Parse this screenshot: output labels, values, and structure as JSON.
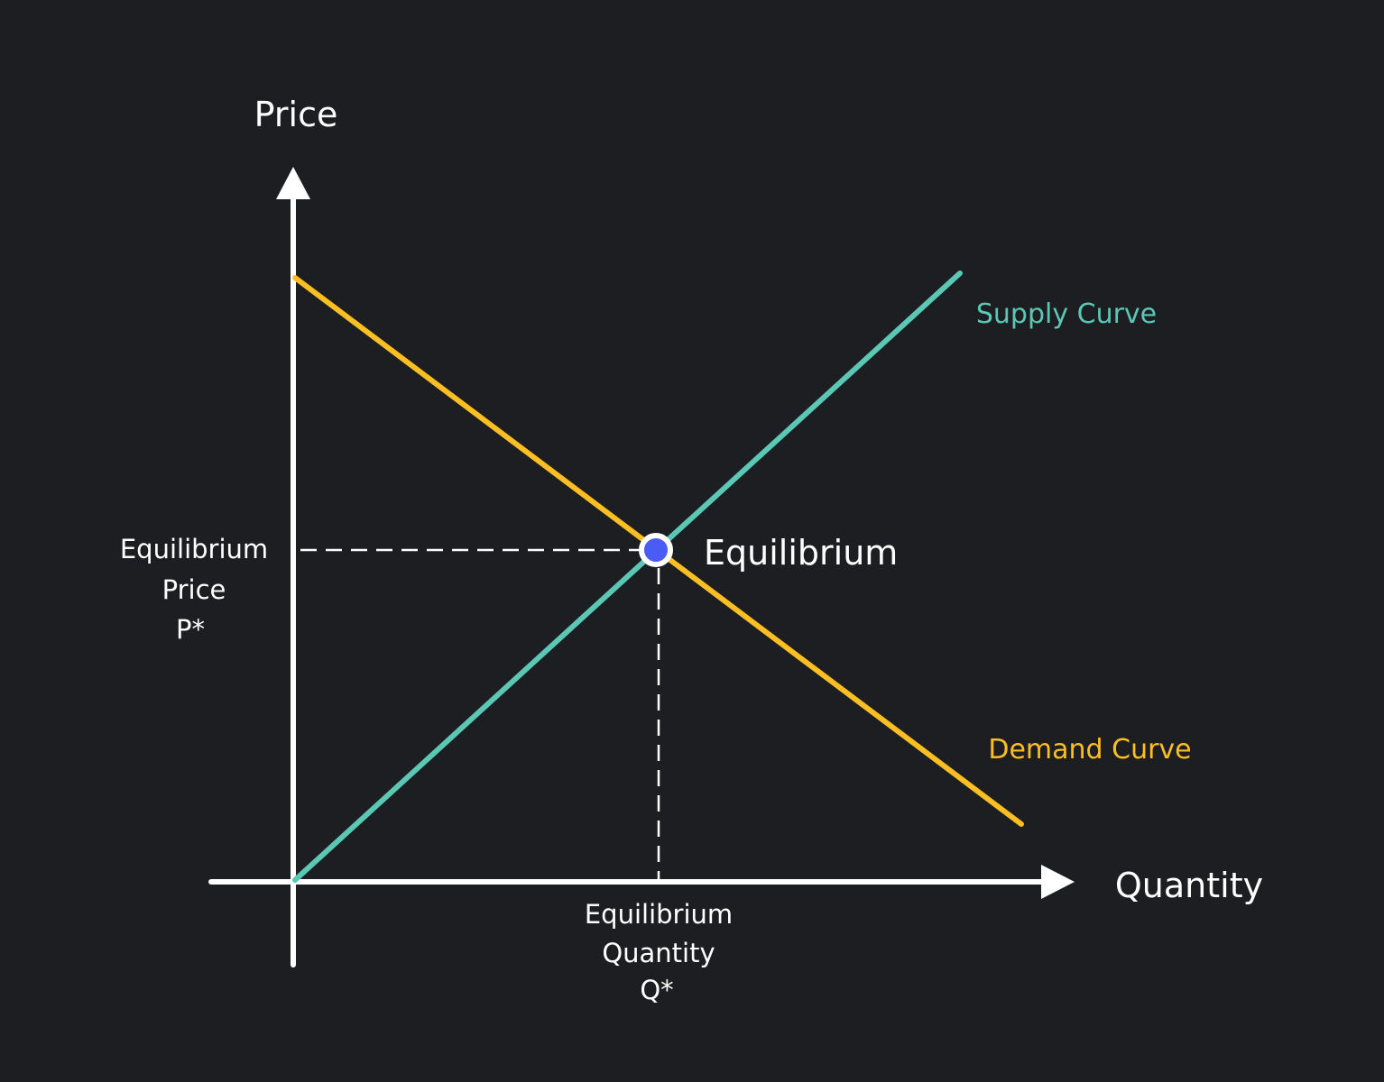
{
  "axes": {
    "y_label": "Price",
    "x_label": "Quantity"
  },
  "curves": {
    "supply": {
      "label": "Supply Curve",
      "color": "#5bc8b5"
    },
    "demand": {
      "label": "Demand Curve",
      "color": "#fbbf24"
    }
  },
  "equilibrium": {
    "label": "Equilibrium",
    "point_color": "#4a5cf5",
    "price_label": [
      "Equilibrium",
      "Price",
      "P*"
    ],
    "quantity_label": [
      "Equilibrium",
      "Quantity",
      "Q*"
    ]
  },
  "colors": {
    "background": "#1d1e21",
    "axis": "#ffffff"
  }
}
